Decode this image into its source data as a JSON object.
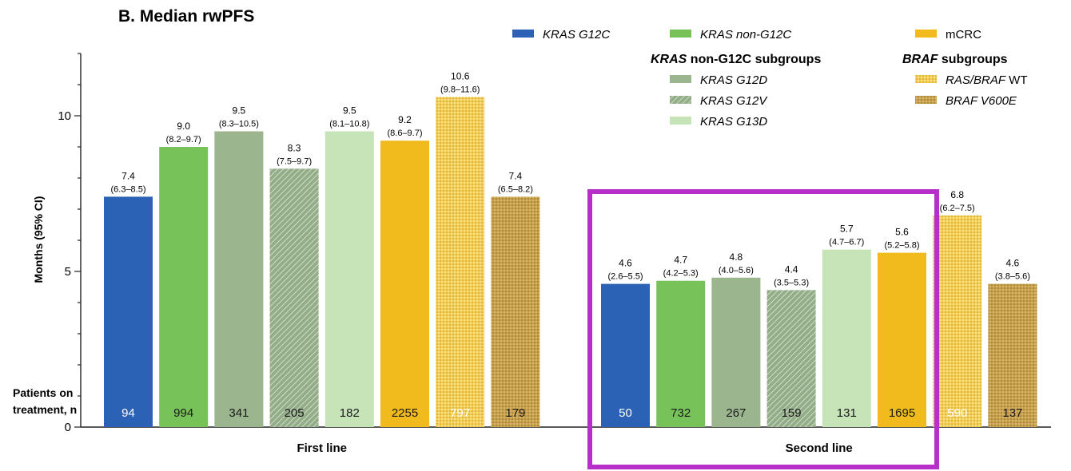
{
  "colors": {
    "g12c": "#2b62b5",
    "nong12c": "#77c35a",
    "g12d": "#9bb58e",
    "g12v": "#93ad88",
    "g13d": "#c7e3b8",
    "mcrc": "#f2bb1d",
    "rasbrafwt": "#f3cf55",
    "brafv600e": "#c9a24e",
    "highlight": "#b62fc9"
  },
  "chart_data": {
    "type": "bar",
    "title": "B.  Median rwPFS",
    "ylabel": "Months  (95% CI)",
    "ylim": [
      0,
      12
    ],
    "yticks": [
      0,
      5,
      10
    ],
    "patients_label_line1": "Patients on",
    "patients_label_line2": "treatment, n",
    "legend": {
      "g12c": "KRAS G12C",
      "nong12c": "KRAS non-G12C",
      "mcrc": "mCRC",
      "subgroups_head_kras": "KRAS",
      "subgroups_head_rest": " non-G12C subgroups",
      "braf_head_braf": "BRAF",
      "braf_head_rest": " subgroups",
      "g12d": "KRAS G12D",
      "g12v": "KRAS G12V",
      "g13d": "KRAS G13D",
      "rasbrafwt_italic": "RAS/BRAF",
      "rasbrafwt_plain": " WT",
      "brafv600e": "BRAF V600E"
    },
    "groups": [
      {
        "label": "First line",
        "bars": [
          {
            "series": "g12c",
            "value": 7.4,
            "value_label": "7.4",
            "ci": "(6.3–8.5)",
            "n": "94"
          },
          {
            "series": "nong12c",
            "value": 9.0,
            "value_label": "9.0",
            "ci": "(8.2–9.7)",
            "n": "994"
          },
          {
            "series": "g12d",
            "value": 9.5,
            "value_label": "9.5",
            "ci": "(8.3–10.5)",
            "n": "341"
          },
          {
            "series": "g12v",
            "value": 8.3,
            "value_label": "8.3",
            "ci": "(7.5–9.7)",
            "n": "205"
          },
          {
            "series": "g13d",
            "value": 9.5,
            "value_label": "9.5",
            "ci": "(8.1–10.8)",
            "n": "182"
          },
          {
            "series": "mcrc",
            "value": 9.2,
            "value_label": "9.2",
            "ci": "(8.6–9.7)",
            "n": "2255"
          },
          {
            "series": "rasbrafwt",
            "value": 10.6,
            "value_label": "10.6",
            "ci": "(9.8–11.6)",
            "n": "797"
          },
          {
            "series": "brafv600e",
            "value": 7.4,
            "value_label": "7.4",
            "ci": "(6.5–8.2)",
            "n": "179"
          }
        ]
      },
      {
        "label": "Second line",
        "bars": [
          {
            "series": "g12c",
            "value": 4.6,
            "value_label": "4.6",
            "ci": "(2.6–5.5)",
            "n": "50"
          },
          {
            "series": "nong12c",
            "value": 4.7,
            "value_label": "4.7",
            "ci": "(4.2–5.3)",
            "n": "732"
          },
          {
            "series": "g12d",
            "value": 4.8,
            "value_label": "4.8",
            "ci": "(4.0–5.6)",
            "n": "267"
          },
          {
            "series": "g12v",
            "value": 4.4,
            "value_label": "4.4",
            "ci": "(3.5–5.3)",
            "n": "159"
          },
          {
            "series": "g13d",
            "value": 5.7,
            "value_label": "5.7",
            "ci": "(4.7–6.7)",
            "n": "131"
          },
          {
            "series": "mcrc",
            "value": 5.6,
            "value_label": "5.6",
            "ci": "(5.2–5.8)",
            "n": "1695"
          },
          {
            "series": "rasbrafwt",
            "value": 6.8,
            "value_label": "6.8",
            "ci": "(6.2–7.5)",
            "n": "590"
          },
          {
            "series": "brafv600e",
            "value": 4.6,
            "value_label": "4.6",
            "ci": "(3.8–5.6)",
            "n": "137"
          }
        ]
      }
    ],
    "highlight_group": "Second line",
    "highlight_color": "#b62fc9"
  }
}
